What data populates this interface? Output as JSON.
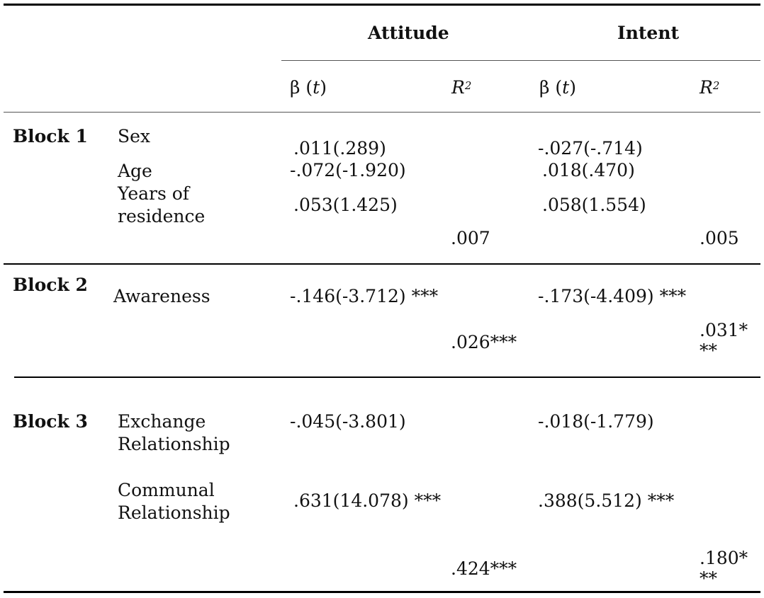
{
  "header": {
    "groups": [
      "Attitude",
      "Intent"
    ],
    "beta_symbol": "β",
    "beta_open": "(",
    "beta_var": "t",
    "beta_close": ")",
    "r_var": "R",
    "r_exp": "2"
  },
  "blocks": [
    {
      "label": "Block 1",
      "variables": [
        "Sex",
        "Age",
        "Years of",
        "residence"
      ],
      "attitude_betas": [
        ".011(.289)",
        "-.072(-1.920)",
        ".053(1.425)"
      ],
      "intent_betas": [
        "-.027(-.714)",
        ".018(.470)",
        ".058(1.554)"
      ],
      "attitude_r2": ".007",
      "intent_r2": ".005"
    },
    {
      "label": "Block 2",
      "variables": [
        "Awareness"
      ],
      "attitude_betas": [
        "-.146(-3.712) ***"
      ],
      "intent_betas": [
        "-.173(-4.409) ***"
      ],
      "attitude_r2": ".026***",
      "intent_r2_lines": [
        ".031*",
        "**"
      ]
    },
    {
      "label": "Block 3",
      "variables": [
        "Exchange",
        "Relationship",
        "Communal",
        "Relationship"
      ],
      "attitude_betas": [
        "-.045(-3.801)",
        ".631(14.078) ***"
      ],
      "intent_betas": [
        "-.018(-1.779)",
        ".388(5.512) ***"
      ],
      "attitude_r2": ".424***",
      "intent_r2_lines": [
        ".180*",
        "**"
      ]
    }
  ]
}
